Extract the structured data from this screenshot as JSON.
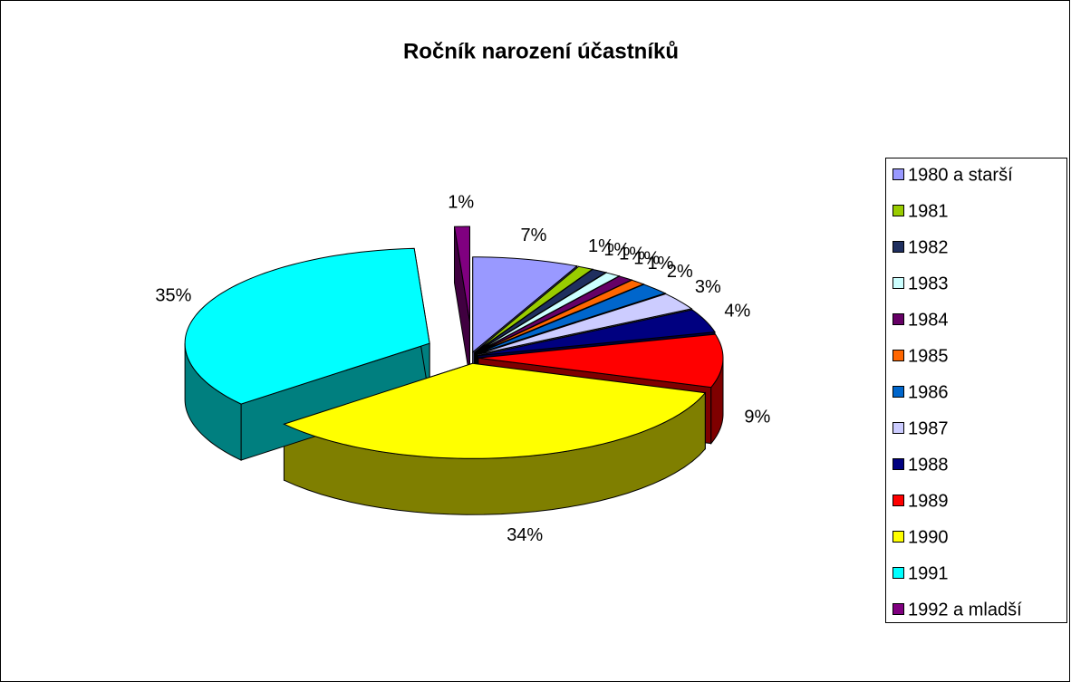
{
  "chart_data": {
    "type": "pie3d",
    "title": "Ročník narození účastníků",
    "categories": [
      "1980 a starší",
      "1981",
      "1982",
      "1983",
      "1984",
      "1985",
      "1986",
      "1987",
      "1988",
      "1989",
      "1990",
      "1991",
      "1992 a mladší"
    ],
    "values": [
      7,
      1,
      1,
      1,
      1,
      1,
      2,
      3,
      4,
      9,
      34,
      35,
      1
    ],
    "value_labels": [
      "7%",
      "1%",
      "1%",
      "1%",
      "1%",
      "1%",
      "2%",
      "3%",
      "4%",
      "9%",
      "34%",
      "35%",
      "1%"
    ],
    "colors": [
      "#9999ff",
      "#99cc00",
      "#1f2f5f",
      "#ccffff",
      "#660066",
      "#ff6600",
      "#0066cc",
      "#ccccff",
      "#000080",
      "#ff0000",
      "#ffff00",
      "#00ffff",
      "#800080"
    ],
    "legend": "right"
  }
}
